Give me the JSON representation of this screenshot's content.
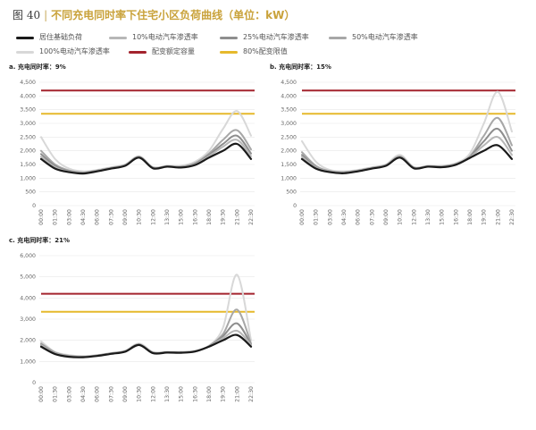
{
  "figure": {
    "number": "图 40",
    "title": "不同充电同时率下住宅小区负荷曲线（单位：kW）"
  },
  "legend": [
    {
      "key": "base",
      "label": "居住基础负荷",
      "color": "#1a1a1a"
    },
    {
      "key": "p10",
      "label": "10%电动汽车渗透率",
      "color": "#b7b7b7"
    },
    {
      "key": "p25",
      "label": "25%电动汽车渗透率",
      "color": "#8e8e8e"
    },
    {
      "key": "p50",
      "label": "50%电动汽车渗透率",
      "color": "#a7a7a7"
    },
    {
      "key": "p100",
      "label": "100%电动汽车渗透率",
      "color": "#d8d8d8"
    },
    {
      "key": "rated",
      "label": "配变额定容量",
      "color": "#a3232d"
    },
    {
      "key": "limit",
      "label": "80%配变限值",
      "color": "#e6b92c"
    }
  ],
  "chart_data": [
    {
      "type": "line",
      "title": "a. 充电同时率：9%",
      "x": [
        "00:00",
        "01:30",
        "03:00",
        "04:30",
        "06:00",
        "07:30",
        "09:00",
        "10:30",
        "12:00",
        "13:30",
        "15:00",
        "16:30",
        "18:00",
        "19:30",
        "21:00",
        "22:30"
      ],
      "ylim": [
        0,
        4500
      ],
      "yticks": [
        0,
        500,
        1000,
        1500,
        2000,
        2500,
        3000,
        3500,
        4000,
        4500
      ],
      "hlines": {
        "rated": 4200,
        "limit": 3350
      },
      "series": [
        {
          "key": "p100",
          "name": "100%电动汽车渗透率",
          "values": [
            2500,
            1700,
            1350,
            1250,
            1300,
            1400,
            1500,
            1800,
            1400,
            1450,
            1450,
            1600,
            2000,
            2800,
            3450,
            2550
          ]
        },
        {
          "key": "p50",
          "name": "50%电动汽车渗透率",
          "values": [
            2000,
            1500,
            1280,
            1210,
            1280,
            1380,
            1480,
            1780,
            1390,
            1440,
            1420,
            1550,
            1900,
            2400,
            2750,
            2050
          ]
        },
        {
          "key": "p25",
          "name": "25%电动汽车渗透率",
          "values": [
            1880,
            1450,
            1250,
            1190,
            1270,
            1370,
            1470,
            1770,
            1380,
            1430,
            1410,
            1520,
            1850,
            2250,
            2550,
            1900
          ]
        },
        {
          "key": "p10",
          "name": "10%电动汽车渗透率",
          "values": [
            1780,
            1400,
            1230,
            1180,
            1260,
            1360,
            1460,
            1760,
            1370,
            1420,
            1400,
            1500,
            1800,
            2150,
            2400,
            1800
          ]
        },
        {
          "key": "base",
          "name": "居住基础负荷",
          "values": [
            1700,
            1350,
            1220,
            1170,
            1250,
            1350,
            1450,
            1750,
            1360,
            1420,
            1390,
            1480,
            1750,
            2000,
            2250,
            1700
          ]
        }
      ]
    },
    {
      "type": "line",
      "title": "b. 充电同时率：15%",
      "x": [
        "00:00",
        "01:30",
        "03:00",
        "04:30",
        "06:00",
        "07:30",
        "09:00",
        "10:30",
        "12:00",
        "13:30",
        "15:00",
        "16:30",
        "18:00",
        "19:30",
        "21:00",
        "22:30"
      ],
      "ylim": [
        0,
        4500
      ],
      "yticks": [
        0,
        500,
        1000,
        1500,
        2000,
        2500,
        3000,
        3500,
        4000,
        4500
      ],
      "hlines": {
        "rated": 4200,
        "limit": 3350
      },
      "series": [
        {
          "key": "p100",
          "name": "100%电动汽车渗透率",
          "values": [
            2350,
            1600,
            1300,
            1250,
            1300,
            1400,
            1500,
            1850,
            1400,
            1450,
            1450,
            1550,
            1900,
            3000,
            4150,
            2700
          ]
        },
        {
          "key": "p50",
          "name": "50%电动汽车渗透率",
          "values": [
            1950,
            1450,
            1260,
            1220,
            1280,
            1380,
            1480,
            1790,
            1390,
            1440,
            1430,
            1520,
            1800,
            2550,
            3200,
            2200
          ]
        },
        {
          "key": "p25",
          "name": "25%电动汽车渗透率",
          "values": [
            1850,
            1400,
            1240,
            1200,
            1270,
            1370,
            1470,
            1780,
            1380,
            1430,
            1420,
            1510,
            1780,
            2350,
            2800,
            2000
          ]
        },
        {
          "key": "p10",
          "name": "10%电动汽车渗透率",
          "values": [
            1780,
            1380,
            1230,
            1190,
            1260,
            1360,
            1460,
            1770,
            1370,
            1425,
            1410,
            1500,
            1760,
            2200,
            2500,
            1850
          ]
        },
        {
          "key": "base",
          "name": "居住基础负荷",
          "values": [
            1700,
            1350,
            1220,
            1180,
            1250,
            1350,
            1450,
            1750,
            1360,
            1420,
            1400,
            1490,
            1740,
            2000,
            2200,
            1700
          ]
        }
      ]
    },
    {
      "type": "line",
      "title": "c. 充电同时率：21%",
      "x": [
        "00:00",
        "01:30",
        "03:00",
        "04:30",
        "06:00",
        "07:30",
        "09:00",
        "10:30",
        "12:00",
        "13:30",
        "15:00",
        "16:30",
        "18:00",
        "19:30",
        "21:00",
        "22:30"
      ],
      "ylim": [
        0,
        6000
      ],
      "yticks": [
        0,
        1000,
        2000,
        3000,
        4000,
        5000,
        6000
      ],
      "hlines": {
        "rated": 4200,
        "limit": 3350
      },
      "series": [
        {
          "key": "p100",
          "name": "100%电动汽车渗透率",
          "values": [
            1950,
            1450,
            1300,
            1250,
            1300,
            1400,
            1500,
            1850,
            1450,
            1450,
            1450,
            1500,
            1750,
            2600,
            5100,
            2000
          ]
        },
        {
          "key": "p50",
          "name": "50%电动汽车渗透率",
          "values": [
            1850,
            1420,
            1270,
            1230,
            1290,
            1390,
            1490,
            1810,
            1420,
            1440,
            1440,
            1490,
            1730,
            2300,
            3450,
            1850
          ]
        },
        {
          "key": "p25",
          "name": "25%电动汽车渗透率",
          "values": [
            1800,
            1400,
            1250,
            1220,
            1280,
            1380,
            1480,
            1800,
            1410,
            1430,
            1430,
            1480,
            1720,
            2200,
            2800,
            1800
          ]
        },
        {
          "key": "p10",
          "name": "10%电动汽车渗透率",
          "values": [
            1770,
            1380,
            1240,
            1210,
            1270,
            1370,
            1470,
            1790,
            1400,
            1425,
            1420,
            1475,
            1710,
            2100,
            2450,
            1780
          ]
        },
        {
          "key": "base",
          "name": "居住基础负荷",
          "values": [
            1700,
            1350,
            1220,
            1200,
            1260,
            1360,
            1460,
            1780,
            1390,
            1420,
            1410,
            1470,
            1700,
            2000,
            2250,
            1700
          ]
        }
      ]
    }
  ]
}
